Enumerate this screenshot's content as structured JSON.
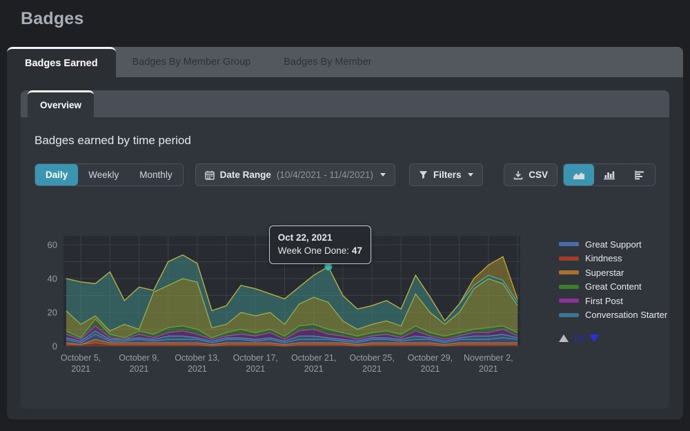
{
  "page": {
    "title": "Badges"
  },
  "tabs": {
    "items": [
      {
        "label": "Badges Earned",
        "active": true
      },
      {
        "label": "Badges By Member Group",
        "active": false
      },
      {
        "label": "Badges By Member",
        "active": false
      }
    ]
  },
  "subtabs": {
    "items": [
      {
        "label": "Overview",
        "active": true
      }
    ]
  },
  "panel": {
    "heading": "Badges earned by time period"
  },
  "controls": {
    "period": {
      "options": [
        "Daily",
        "Weekly",
        "Monthly"
      ],
      "selected": "Daily"
    },
    "date_range": {
      "label": "Date Range",
      "range": "(10/4/2021 - 11/4/2021)"
    },
    "filters": {
      "label": "Filters"
    },
    "export": {
      "label": "CSV"
    },
    "chart_type": {
      "options": [
        "area-chart",
        "bar-chart",
        "horizontal-bar-chart"
      ],
      "selected": "area-chart"
    }
  },
  "colors": {
    "accent_teal": "#3b95b0",
    "plot_bg": "#282b32",
    "grid": "#3c4149",
    "axis_label": "#9aa0a9",
    "highlight_dot": "#41c0b1"
  },
  "tooltip": {
    "title": "Oct 22, 2021",
    "series": "Week One Done",
    "separator": ": ",
    "value": "47"
  },
  "legend": {
    "items": [
      {
        "label": "Great Support",
        "color": "#4a6cab"
      },
      {
        "label": "Kindness",
        "color": "#a33d27"
      },
      {
        "label": "Superstar",
        "color": "#a8712f"
      },
      {
        "label": "Great Content",
        "color": "#3f7c33"
      },
      {
        "label": "First Post",
        "color": "#8e2f9a"
      },
      {
        "label": "Conversation Starter",
        "color": "#3e7391"
      }
    ],
    "pagination": {
      "page": "1/3"
    }
  },
  "chart_data": {
    "type": "area",
    "stacked": true,
    "title": "Badges earned by time period",
    "x_range": [
      "10/4/2021",
      "11/4/2021"
    ],
    "n_points": 32,
    "x_tick_indices": [
      1,
      5,
      9,
      13,
      17,
      21,
      25,
      29
    ],
    "x_tick_labels": [
      "October 5, 2021",
      "October 9, 2021",
      "October 13, 2021",
      "October 17, 2021",
      "October 21, 2021",
      "October 25, 2021",
      "October 29, 2021",
      "November 2, 2021"
    ],
    "y_ticks": [
      0,
      20,
      40,
      60
    ],
    "ylim": [
      0,
      60
    ],
    "grid": true,
    "legend_position": "right",
    "highlight": {
      "index": 18,
      "date": "Oct 22, 2021",
      "series": "Week One Done",
      "value": 47
    },
    "series": [
      {
        "name": "Kindness",
        "line": "#c0492c",
        "fill": "rgba(192,73,44,0.45)",
        "values": [
          1,
          1,
          2,
          1,
          1,
          1,
          1,
          1,
          1,
          1,
          0,
          1,
          1,
          1,
          1,
          0,
          1,
          1,
          1,
          1,
          0,
          1,
          1,
          1,
          1,
          1,
          0,
          1,
          1,
          1,
          1,
          1
        ]
      },
      {
        "name": "Superstar",
        "line": "#c07c2e",
        "fill": "rgba(192,124,46,0.45)",
        "values": [
          1,
          0,
          2,
          1,
          1,
          1,
          1,
          1,
          1,
          1,
          1,
          1,
          1,
          1,
          1,
          1,
          1,
          1,
          1,
          1,
          1,
          1,
          1,
          1,
          1,
          1,
          1,
          1,
          1,
          1,
          1,
          1
        ]
      },
      {
        "name": "Great Support",
        "line": "#5276c0",
        "fill": "rgba(82,118,192,0.40)",
        "values": [
          2,
          1,
          3,
          1,
          1,
          2,
          1,
          2,
          2,
          2,
          1,
          2,
          2,
          1,
          2,
          1,
          2,
          2,
          2,
          1,
          1,
          2,
          2,
          1,
          2,
          2,
          1,
          2,
          2,
          2,
          3,
          2
        ]
      },
      {
        "name": "Conversation Starter",
        "line": "#4a90b5",
        "fill": "rgba(74,144,181,0.40)",
        "values": [
          1,
          1,
          2,
          1,
          1,
          1,
          1,
          2,
          2,
          1,
          1,
          1,
          1,
          1,
          1,
          1,
          2,
          2,
          1,
          1,
          1,
          1,
          1,
          1,
          2,
          1,
          1,
          1,
          2,
          2,
          2,
          1
        ]
      },
      {
        "name": "First Post",
        "line": "#a23ab8",
        "fill": "rgba(162,58,184,0.35)",
        "values": [
          2,
          1,
          3,
          1,
          0,
          2,
          1,
          2,
          3,
          2,
          1,
          1,
          2,
          2,
          3,
          1,
          3,
          4,
          2,
          2,
          1,
          1,
          2,
          1,
          3,
          1,
          1,
          1,
          2,
          2,
          3,
          1
        ]
      },
      {
        "name": "Great Content",
        "line": "#58a33c",
        "fill": "rgba(88,163,60,0.40)",
        "values": [
          2,
          1,
          4,
          2,
          1,
          2,
          2,
          3,
          3,
          3,
          1,
          2,
          3,
          2,
          2,
          2,
          3,
          3,
          3,
          2,
          2,
          2,
          2,
          2,
          3,
          2,
          2,
          2,
          2,
          3,
          2,
          2
        ]
      },
      {
        "name": "unlabeled-1",
        "line": "#b9c23f",
        "fill": "rgba(150,158,62,0.55)",
        "values": [
          12,
          8,
          2,
          2,
          8,
          1,
          25,
          25,
          28,
          28,
          6,
          5,
          10,
          10,
          10,
          7,
          13,
          16,
          16,
          7,
          4,
          5,
          6,
          5,
          19,
          12,
          7,
          12,
          24,
          29,
          25,
          16
        ]
      },
      {
        "name": "Week One Done",
        "line": "#49bcab",
        "fill": "rgba(58,128,122,0.60)",
        "values": [
          19,
          25,
          19,
          35,
          14,
          25,
          1,
          14,
          14,
          11,
          10,
          11,
          16,
          16,
          11,
          15,
          10,
          13,
          21,
          15,
          12,
          11,
          12,
          10,
          11,
          9,
          2,
          5,
          2,
          2,
          2,
          2
        ]
      },
      {
        "name": "unlabeled-2",
        "line": "#c3ad33",
        "fill": "rgba(146,126,48,0.60)",
        "values": [
          0,
          0,
          0,
          0,
          0,
          0,
          0,
          0,
          0,
          0,
          0,
          0,
          0,
          0,
          0,
          0,
          0,
          0,
          0,
          0,
          0,
          0,
          0,
          0,
          0,
          0,
          0,
          0,
          4,
          6,
          14,
          2
        ]
      }
    ]
  }
}
